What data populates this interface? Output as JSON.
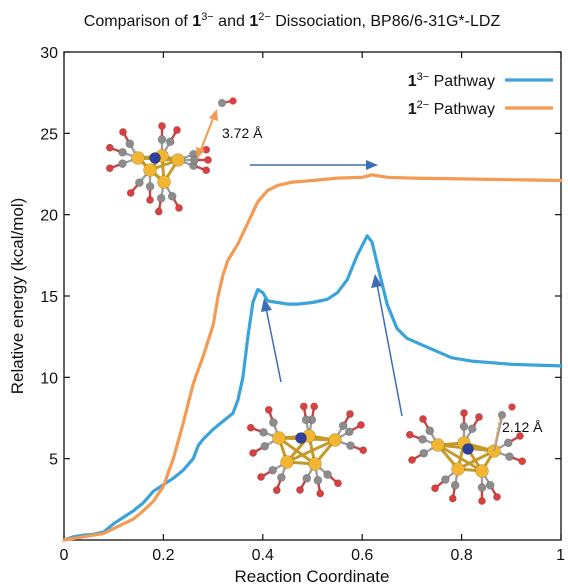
{
  "chart_data": {
    "type": "line",
    "title_parts": [
      {
        "text": "Comparison of "
      },
      {
        "text": "1",
        "bold": true
      },
      {
        "text": "3−",
        "sup": true
      },
      {
        "text": " and "
      },
      {
        "text": "1",
        "bold": true
      },
      {
        "text": "2−",
        "sup": true
      },
      {
        "text": " Dissociation, BP86/6-31G*-LDZ"
      }
    ],
    "xlabel": "Reaction Coordinate",
    "ylabel": "Relative energy (kcal/mol)",
    "xlim": [
      0,
      1
    ],
    "ylim": [
      0,
      30
    ],
    "x_ticks": [
      0,
      0.2,
      0.4,
      0.6,
      0.8,
      1
    ],
    "x_tick_labels": [
      "0",
      "0.2",
      "0.4",
      "0.6",
      "0.8",
      "1"
    ],
    "y_ticks": [
      5,
      10,
      15,
      20,
      25,
      30
    ],
    "y_tick_labels": [
      "5",
      "10",
      "15",
      "20",
      "25",
      "30"
    ],
    "legend_position": "top-right",
    "series": [
      {
        "legend_parts": [
          {
            "text": "1",
            "bold": true
          },
          {
            "text": "3−",
            "sup": true
          },
          {
            "text": " Pathway"
          }
        ],
        "color": "#3aa3d9",
        "points": [
          [
            0,
            0
          ],
          [
            0.02,
            0.2
          ],
          [
            0.04,
            0.3
          ],
          [
            0.06,
            0.35
          ],
          [
            0.08,
            0.5
          ],
          [
            0.1,
            1.0
          ],
          [
            0.12,
            1.4
          ],
          [
            0.14,
            1.8
          ],
          [
            0.16,
            2.3
          ],
          [
            0.18,
            3.0
          ],
          [
            0.2,
            3.4
          ],
          [
            0.22,
            3.8
          ],
          [
            0.24,
            4.3
          ],
          [
            0.26,
            5.0
          ],
          [
            0.27,
            5.8
          ],
          [
            0.28,
            6.2
          ],
          [
            0.3,
            6.8
          ],
          [
            0.32,
            7.3
          ],
          [
            0.34,
            7.8
          ],
          [
            0.35,
            8.6
          ],
          [
            0.36,
            10.0
          ],
          [
            0.37,
            12.5
          ],
          [
            0.38,
            14.6
          ],
          [
            0.39,
            15.4
          ],
          [
            0.4,
            15.2
          ],
          [
            0.41,
            14.7
          ],
          [
            0.43,
            14.6
          ],
          [
            0.45,
            14.5
          ],
          [
            0.47,
            14.5
          ],
          [
            0.5,
            14.6
          ],
          [
            0.53,
            14.8
          ],
          [
            0.55,
            15.2
          ],
          [
            0.57,
            16.0
          ],
          [
            0.59,
            17.5
          ],
          [
            0.61,
            18.7
          ],
          [
            0.62,
            18.3
          ],
          [
            0.63,
            17.0
          ],
          [
            0.65,
            14.5
          ],
          [
            0.67,
            13.0
          ],
          [
            0.69,
            12.4
          ],
          [
            0.72,
            12.0
          ],
          [
            0.75,
            11.6
          ],
          [
            0.78,
            11.2
          ],
          [
            0.82,
            11.0
          ],
          [
            0.86,
            10.9
          ],
          [
            0.9,
            10.8
          ],
          [
            0.95,
            10.75
          ],
          [
            1.0,
            10.7
          ]
        ]
      },
      {
        "legend_parts": [
          {
            "text": "1",
            "bold": true
          },
          {
            "text": "2−",
            "sup": true
          },
          {
            "text": " Pathway"
          }
        ],
        "color": "#f39a53",
        "points": [
          [
            0,
            0
          ],
          [
            0.02,
            0.1
          ],
          [
            0.04,
            0.2
          ],
          [
            0.06,
            0.3
          ],
          [
            0.08,
            0.4
          ],
          [
            0.1,
            0.7
          ],
          [
            0.12,
            1.0
          ],
          [
            0.14,
            1.3
          ],
          [
            0.16,
            1.8
          ],
          [
            0.18,
            2.4
          ],
          [
            0.2,
            3.3
          ],
          [
            0.22,
            5.0
          ],
          [
            0.24,
            7.2
          ],
          [
            0.26,
            9.6
          ],
          [
            0.28,
            11.3
          ],
          [
            0.3,
            13.2
          ],
          [
            0.31,
            15.0
          ],
          [
            0.32,
            16.3
          ],
          [
            0.33,
            17.2
          ],
          [
            0.35,
            18.2
          ],
          [
            0.37,
            19.5
          ],
          [
            0.39,
            20.8
          ],
          [
            0.41,
            21.5
          ],
          [
            0.43,
            21.8
          ],
          [
            0.46,
            22.0
          ],
          [
            0.5,
            22.1
          ],
          [
            0.55,
            22.25
          ],
          [
            0.6,
            22.3
          ],
          [
            0.62,
            22.45
          ],
          [
            0.65,
            22.3
          ],
          [
            0.7,
            22.25
          ],
          [
            0.8,
            22.2
          ],
          [
            0.9,
            22.15
          ],
          [
            1.0,
            22.1
          ]
        ]
      }
    ],
    "annotations": [
      {
        "text": "3.72 Å"
      },
      {
        "text": "2.12 Å"
      }
    ]
  }
}
